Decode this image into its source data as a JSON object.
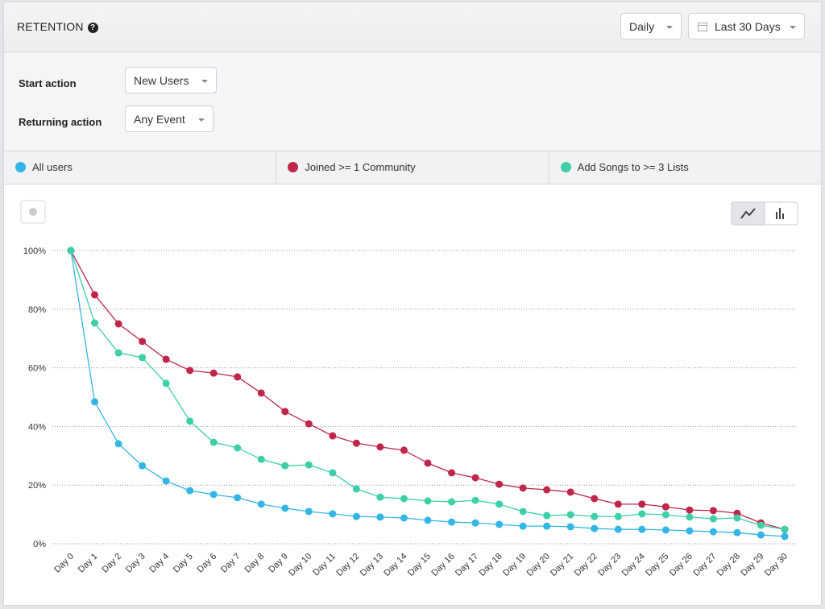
{
  "header": {
    "title": "RETENTION",
    "interval": "Daily",
    "range": "Last 30 Days"
  },
  "filters": [
    {
      "label": "Start action",
      "value": "New Users"
    },
    {
      "label": "Returning action",
      "value": "Any Event"
    }
  ],
  "chart_data": {
    "type": "line",
    "categories": [
      "Day 0",
      "Day 1",
      "Day 2",
      "Day 3",
      "Day 4",
      "Day 5",
      "Day 6",
      "Day 7",
      "Day 8",
      "Day 9",
      "Day 10",
      "Day 11",
      "Day 12",
      "Day 13",
      "Day 14",
      "Day 15",
      "Day 16",
      "Day 17",
      "Day 18",
      "Day 19",
      "Day 20",
      "Day 21",
      "Day 22",
      "Day 23",
      "Day 24",
      "Day 25",
      "Day 26",
      "Day 27",
      "Day 28",
      "Day 29",
      "Day 30"
    ],
    "series": [
      {
        "name": "All users",
        "color": "#33b5e5",
        "values": [
          100,
          48.4,
          34.1,
          26.6,
          21.4,
          18.1,
          16.8,
          15.7,
          13.5,
          12.1,
          11.0,
          10.2,
          9.3,
          9.1,
          8.8,
          8.0,
          7.4,
          7.1,
          6.6,
          6.0,
          6.0,
          5.8,
          5.2,
          4.9,
          4.9,
          4.7,
          4.4,
          4.1,
          3.8,
          3.0,
          2.5
        ]
      },
      {
        "name": "Joined >= 1 Community",
        "color": "#c0254a",
        "values": [
          100,
          84.9,
          75.0,
          69.0,
          62.9,
          59.1,
          58.2,
          56.9,
          51.4,
          45.1,
          40.9,
          36.8,
          34.3,
          33.0,
          31.9,
          27.5,
          24.2,
          22.5,
          20.3,
          19.0,
          18.4,
          17.6,
          15.4,
          13.5,
          13.5,
          12.6,
          11.5,
          11.3,
          10.4,
          7.1,
          4.9
        ]
      },
      {
        "name": "Add Songs to >= 3 Lists",
        "color": "#3ccfa8",
        "values": [
          100,
          75.3,
          65.1,
          63.5,
          54.7,
          41.8,
          34.6,
          32.7,
          28.8,
          26.6,
          26.9,
          24.2,
          18.7,
          15.9,
          15.4,
          14.6,
          14.3,
          14.8,
          13.5,
          11.0,
          9.6,
          9.9,
          9.3,
          9.3,
          10.2,
          9.9,
          9.1,
          8.5,
          8.8,
          6.3,
          4.9
        ]
      }
    ],
    "ylim": [
      0,
      100
    ],
    "yticks": [
      {
        "value": 0,
        "label": "0%"
      },
      {
        "value": 20,
        "label": "20%"
      },
      {
        "value": 40,
        "label": "40%"
      },
      {
        "value": 60,
        "label": "60%"
      },
      {
        "value": 80,
        "label": "80%"
      },
      {
        "value": 100,
        "label": "100%"
      }
    ],
    "grid": true
  }
}
